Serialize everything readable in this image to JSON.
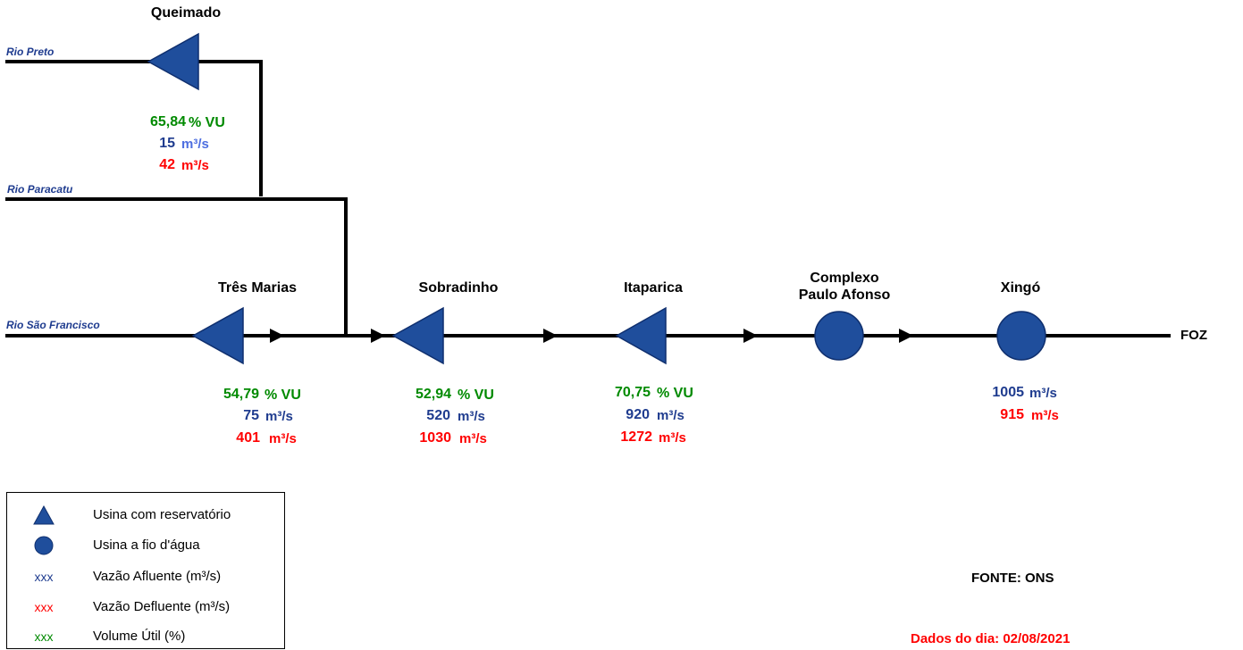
{
  "colors": {
    "line": "#000000",
    "plant_fill": "#1f4e9c",
    "plant_stroke": "#0f2f6e",
    "volume": "#008a00",
    "afluente": "#1f3c8f",
    "defluente": "#ff0000",
    "river_label": "#1f3c8f"
  },
  "rivers": {
    "preto": "Rio Preto",
    "paracatu": "Rio Paracatu",
    "sao_francisco": "Rio São Francisco"
  },
  "plants": {
    "queimado": {
      "name": "Queimado",
      "volume_value": "65,84",
      "volume_unit": "% VU",
      "afluente_value": "15",
      "afluente_unit": "m³/s",
      "defluente_value": "42",
      "defluente_unit": "m³/s"
    },
    "tres_marias": {
      "name": "Três Marias",
      "volume_value": "54,79",
      "volume_unit": "% VU",
      "afluente_value": "75",
      "afluente_unit": "m³/s",
      "defluente_value": "401",
      "defluente_unit": "m³/s"
    },
    "sobradinho": {
      "name": "Sobradinho",
      "volume_value": "52,94",
      "volume_unit": "% VU",
      "afluente_value": "520",
      "afluente_unit": "m³/s",
      "defluente_value": "1030",
      "defluente_unit": "m³/s"
    },
    "itaparica": {
      "name": "Itaparica",
      "volume_value": "70,75",
      "volume_unit": "% VU",
      "afluente_value": "920",
      "afluente_unit": "m³/s",
      "defluente_value": "1272",
      "defluente_unit": "m³/s"
    },
    "paulo_afonso": {
      "name_line1": "Complexo",
      "name_line2": "Paulo Afonso"
    },
    "xingo": {
      "name": "Xingó",
      "afluente_value": "1005",
      "afluente_unit": "m³/s",
      "defluente_value": "915",
      "defluente_unit": "m³/s"
    }
  },
  "mouth_label": "FOZ",
  "legend": {
    "reservoir": "Usina com reservatório",
    "run_of_river": "Usina a fio d'água",
    "afluente_symbol": "xxx",
    "afluente": "Vazão Afluente (m³/s)",
    "defluente_symbol": "xxx",
    "defluente": "Vazão Defluente (m³/s)",
    "volume_symbol": "xxx",
    "volume": "Volume Útil (%)"
  },
  "source": "FONTE: ONS",
  "date_label": "Dados do dia:",
  "date_value": "02/08/2021"
}
